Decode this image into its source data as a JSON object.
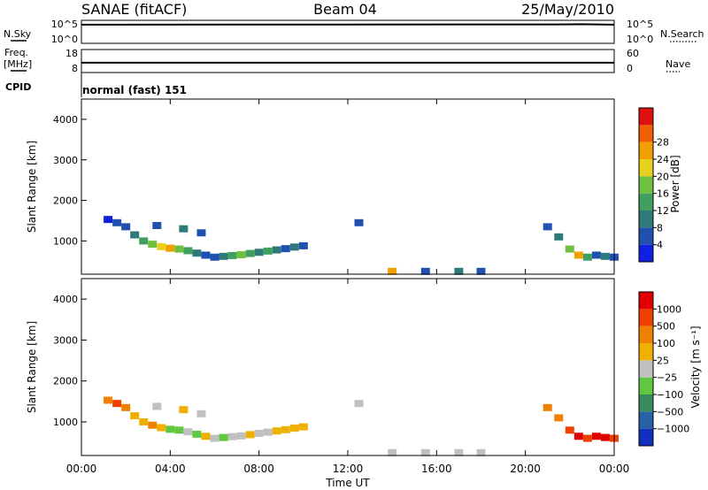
{
  "header": {
    "station": "SANAE (fitACF)",
    "beam": "Beam 04",
    "date": "25/May/2010"
  },
  "params": {
    "nsky_label": "N.Sky",
    "nsky_ticks": [
      "10^5",
      "10^0"
    ],
    "nsearch_label": "N.Search",
    "nsearch_ticks": [
      "10^5",
      "10^0"
    ],
    "freq_label": "Freq.",
    "freq_unit": "[MHz]",
    "freq_ticks": [
      "18",
      "8"
    ],
    "nave_label": "Nave",
    "nave_ticks": [
      "60",
      "0"
    ],
    "cpid_label": "CPID",
    "cpid_text": "normal (fast) 151"
  },
  "axes": {
    "time_label": "Time UT",
    "time_ticks": [
      "00:00",
      "04:00",
      "08:00",
      "12:00",
      "16:00",
      "20:00",
      "00:00"
    ],
    "range_label": "Slant Range [km]",
    "range_ticks": [
      "1000",
      "2000",
      "3000",
      "4000"
    ]
  },
  "power_scale": {
    "label": "Power [dB]",
    "ticks": [
      "4",
      "8",
      "12",
      "16",
      "20",
      "24",
      "28"
    ],
    "colors": [
      "#1020e0",
      "#2050b0",
      "#2e7a7a",
      "#40a060",
      "#70c040",
      "#e8d020",
      "#f0a000",
      "#f06000",
      "#e01010"
    ]
  },
  "velocity_scale": {
    "label": "Velocity [m s⁻¹]",
    "ticks": [
      "1000",
      "500",
      "100",
      "25",
      "−25",
      "−100",
      "−500",
      "−1000"
    ],
    "colors": [
      "#1030c0",
      "#2a60a8",
      "#3a8a60",
      "#60c840",
      "#c0c0c0",
      "#f0b000",
      "#f08000",
      "#f04000",
      "#e00000"
    ]
  },
  "chart_data": [
    {
      "type": "line",
      "panel": "N.Sky / N.Search",
      "x_unit": "hours UT",
      "xlim": [
        0,
        24
      ],
      "ylim_log10": [
        0,
        5
      ],
      "series": [
        {
          "values": [
            [
              0,
              4.2
            ],
            [
              0.2,
              4.2
            ],
            [
              21.5,
              4.25
            ],
            [
              22.5,
              4.3
            ],
            [
              24,
              4.2
            ]
          ]
        }
      ]
    },
    {
      "type": "line",
      "panel": "Freq. / Nave",
      "x_unit": "hours UT",
      "xlim": [
        0,
        24
      ],
      "ylim": [
        8,
        18
      ],
      "series": [
        {
          "values": [
            [
              0,
              12.2
            ],
            [
              0.2,
              12.2
            ],
            [
              12,
              12.2
            ],
            [
              24,
              12.2
            ]
          ]
        }
      ]
    },
    {
      "type": "heatmap",
      "panel": "Power",
      "x_unit": "hours UT",
      "y_unit": "km",
      "xlim": [
        0,
        24
      ],
      "ylim": [
        180,
        4500
      ],
      "cells": [
        [
          1.2,
          1530,
          0
        ],
        [
          1.6,
          1450,
          1
        ],
        [
          2.0,
          1350,
          1
        ],
        [
          2.4,
          1150,
          2
        ],
        [
          2.8,
          1000,
          3
        ],
        [
          3.2,
          920,
          4
        ],
        [
          3.6,
          860,
          5
        ],
        [
          4.0,
          820,
          6
        ],
        [
          4.4,
          800,
          4
        ],
        [
          4.8,
          760,
          3
        ],
        [
          5.2,
          700,
          2
        ],
        [
          5.6,
          650,
          1
        ],
        [
          6.0,
          600,
          1
        ],
        [
          6.4,
          620,
          2
        ],
        [
          6.8,
          640,
          3
        ],
        [
          7.2,
          660,
          4
        ],
        [
          7.6,
          690,
          3
        ],
        [
          8.0,
          720,
          2
        ],
        [
          8.4,
          750,
          3
        ],
        [
          8.8,
          780,
          2
        ],
        [
          9.2,
          810,
          1
        ],
        [
          9.6,
          850,
          2
        ],
        [
          10.0,
          880,
          1
        ],
        [
          3.4,
          1380,
          1
        ],
        [
          4.6,
          1300,
          2
        ],
        [
          5.4,
          1200,
          1
        ],
        [
          12.5,
          1450,
          1
        ],
        [
          14.0,
          250,
          6
        ],
        [
          15.5,
          250,
          1
        ],
        [
          17.0,
          250,
          2
        ],
        [
          18.0,
          250,
          1
        ],
        [
          21.0,
          1350,
          1
        ],
        [
          21.5,
          1100,
          2
        ],
        [
          22.0,
          800,
          4
        ],
        [
          22.4,
          650,
          6
        ],
        [
          22.8,
          600,
          3
        ],
        [
          23.2,
          650,
          1
        ],
        [
          23.6,
          620,
          2
        ],
        [
          24.0,
          600,
          1
        ]
      ]
    },
    {
      "type": "heatmap",
      "panel": "Velocity",
      "x_unit": "hours UT",
      "y_unit": "km",
      "xlim": [
        0,
        24
      ],
      "ylim": [
        180,
        4500
      ],
      "cells": [
        [
          1.2,
          1530,
          6
        ],
        [
          1.6,
          1450,
          7
        ],
        [
          2.0,
          1350,
          6
        ],
        [
          2.4,
          1150,
          5
        ],
        [
          2.8,
          1000,
          5
        ],
        [
          3.2,
          920,
          6
        ],
        [
          3.6,
          860,
          5
        ],
        [
          4.0,
          820,
          3
        ],
        [
          4.4,
          800,
          3
        ],
        [
          4.8,
          760,
          4
        ],
        [
          5.2,
          700,
          3
        ],
        [
          5.6,
          650,
          5
        ],
        [
          6.0,
          600,
          4
        ],
        [
          6.4,
          620,
          3
        ],
        [
          6.8,
          640,
          4
        ],
        [
          7.2,
          660,
          4
        ],
        [
          7.6,
          690,
          5
        ],
        [
          8.0,
          720,
          4
        ],
        [
          8.4,
          750,
          4
        ],
        [
          8.8,
          780,
          5
        ],
        [
          9.2,
          810,
          5
        ],
        [
          9.6,
          850,
          5
        ],
        [
          10.0,
          880,
          5
        ],
        [
          3.4,
          1380,
          4
        ],
        [
          4.6,
          1300,
          5
        ],
        [
          5.4,
          1200,
          4
        ],
        [
          12.5,
          1450,
          4
        ],
        [
          14.0,
          250,
          4
        ],
        [
          15.5,
          250,
          4
        ],
        [
          17.0,
          250,
          4
        ],
        [
          18.0,
          250,
          4
        ],
        [
          21.0,
          1350,
          6
        ],
        [
          21.5,
          1100,
          6
        ],
        [
          22.0,
          800,
          7
        ],
        [
          22.4,
          650,
          8
        ],
        [
          22.8,
          600,
          7
        ],
        [
          23.2,
          650,
          8
        ],
        [
          23.6,
          620,
          8
        ],
        [
          24.0,
          600,
          7
        ]
      ]
    }
  ]
}
